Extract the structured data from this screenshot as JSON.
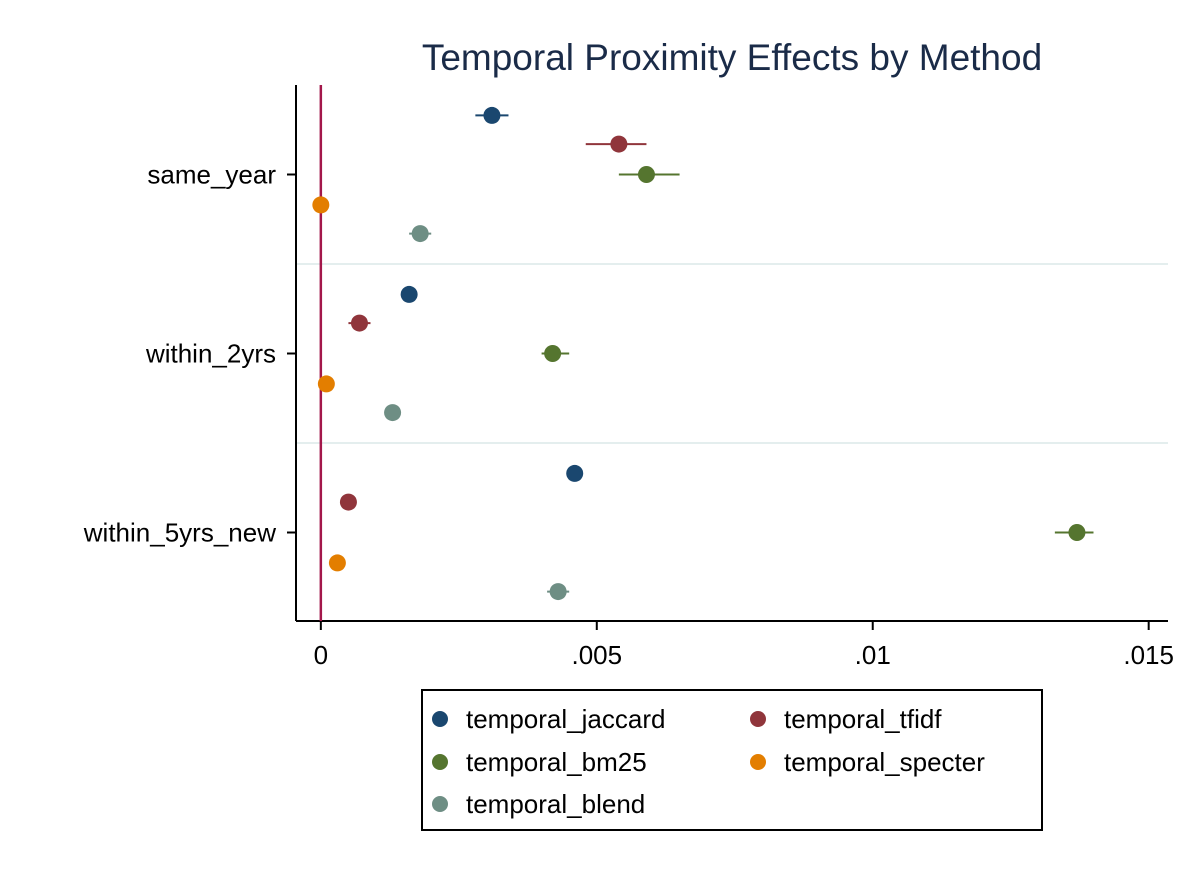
{
  "chart_data": {
    "type": "scatter",
    "title": "Temporal Proximity Effects by Method",
    "xlabel": "",
    "ylabel": "",
    "xlim": [
      -0.00045,
      0.01535
    ],
    "x_ticks": [
      {
        "value": 0,
        "label": "0"
      },
      {
        "value": 0.005,
        "label": ".005"
      },
      {
        "value": 0.01,
        "label": ".01"
      },
      {
        "value": 0.015,
        "label": ".015"
      }
    ],
    "categories": [
      "same_year",
      "within_2yrs",
      "within_5yrs_new"
    ],
    "reference_line": {
      "x": 0,
      "color": "#a3174a"
    },
    "grid": true,
    "legend_position": "bottom",
    "series": [
      {
        "name": "temporal_jaccard",
        "color": "#1a476f",
        "points": [
          {
            "x": 0.0031,
            "lo": 0.0028,
            "hi": 0.0034
          },
          {
            "x": 0.0016,
            "lo": 0.00155,
            "hi": 0.00165
          },
          {
            "x": 0.0046,
            "lo": 0.00455,
            "hi": 0.00465
          }
        ]
      },
      {
        "name": "temporal_tfidf",
        "color": "#90353b",
        "points": [
          {
            "x": 0.0054,
            "lo": 0.0048,
            "hi": 0.0059
          },
          {
            "x": 0.0007,
            "lo": 0.0005,
            "hi": 0.0009
          },
          {
            "x": 0.0005,
            "lo": 0.00045,
            "hi": 0.00055
          }
        ]
      },
      {
        "name": "temporal_bm25",
        "color": "#55752f",
        "points": [
          {
            "x": 0.0059,
            "lo": 0.0054,
            "hi": 0.0065
          },
          {
            "x": 0.0042,
            "lo": 0.004,
            "hi": 0.0045
          },
          {
            "x": 0.0137,
            "lo": 0.0133,
            "hi": 0.014
          }
        ]
      },
      {
        "name": "temporal_specter",
        "color": "#e37e00",
        "points": [
          {
            "x": 0.0,
            "lo": -5e-05,
            "hi": 5e-05
          },
          {
            "x": 0.0001,
            "lo": 5e-05,
            "hi": 0.00015
          },
          {
            "x": 0.0003,
            "lo": 0.00025,
            "hi": 0.00035
          }
        ]
      },
      {
        "name": "temporal_blend",
        "color": "#6e8e84",
        "points": [
          {
            "x": 0.0018,
            "lo": 0.0016,
            "hi": 0.002
          },
          {
            "x": 0.0013,
            "lo": 0.00125,
            "hi": 0.00135
          },
          {
            "x": 0.0043,
            "lo": 0.0041,
            "hi": 0.0045
          }
        ]
      }
    ]
  }
}
